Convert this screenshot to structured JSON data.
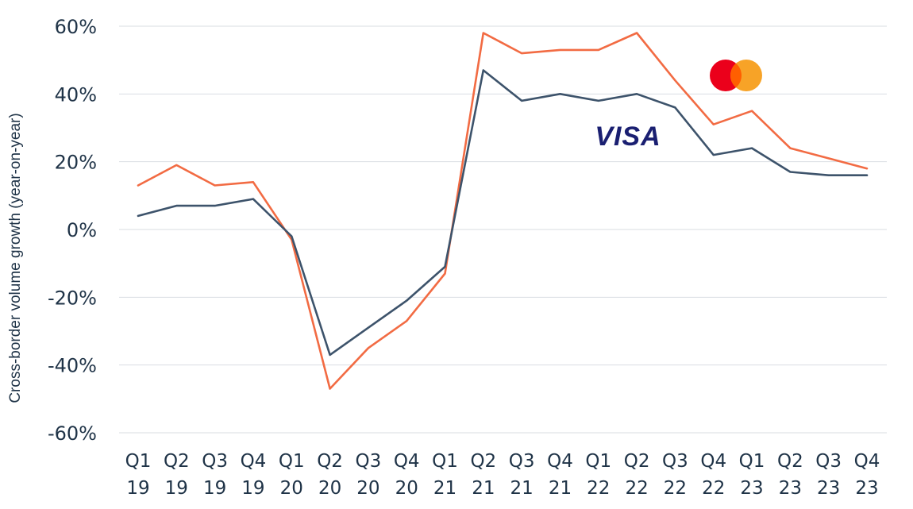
{
  "chart_data": {
    "type": "line",
    "xlabel": "",
    "ylabel": "Cross-border volume growth (year-on-year)",
    "categories": [
      [
        "Q1",
        "19"
      ],
      [
        "Q2",
        "19"
      ],
      [
        "Q3",
        "19"
      ],
      [
        "Q4",
        "19"
      ],
      [
        "Q1",
        "20"
      ],
      [
        "Q2",
        "20"
      ],
      [
        "Q3",
        "20"
      ],
      [
        "Q4",
        "20"
      ],
      [
        "Q1",
        "21"
      ],
      [
        "Q2",
        "21"
      ],
      [
        "Q3",
        "21"
      ],
      [
        "Q4",
        "21"
      ],
      [
        "Q1",
        "22"
      ],
      [
        "Q2",
        "22"
      ],
      [
        "Q3",
        "22"
      ],
      [
        "Q4",
        "22"
      ],
      [
        "Q1",
        "23"
      ],
      [
        "Q2",
        "23"
      ],
      [
        "Q3",
        "23"
      ],
      [
        "Q4",
        "23"
      ]
    ],
    "ylim": [
      -60,
      60
    ],
    "yticks": [
      60,
      40,
      20,
      0,
      -20,
      -40,
      -60
    ],
    "ytick_labels": [
      "60%",
      "40%",
      "20%",
      "0%",
      "-20%",
      "-40%",
      "-60%"
    ],
    "grid": true,
    "series": [
      {
        "key": "mastercard",
        "color": "#f26b43",
        "values": [
          13,
          19,
          13,
          14,
          -3,
          -47,
          -35,
          -27,
          -13,
          58,
          52,
          53,
          53,
          58,
          44,
          31,
          35,
          24,
          21,
          18
        ]
      },
      {
        "key": "visa",
        "color": "#3d536b",
        "values": [
          4,
          7,
          7,
          9,
          -2,
          -37,
          -29,
          -21,
          -11,
          47,
          38,
          40,
          38,
          40,
          36,
          22,
          24,
          17,
          16,
          16
        ]
      }
    ],
    "legend_logos": {
      "mastercard": {
        "colors": [
          "#eb001b",
          "#f79e1b",
          "#ff5f00"
        ],
        "icon": "mastercard-logo"
      },
      "visa": {
        "text": "VISA",
        "color": "#1a1f71",
        "icon": "visa-logo"
      }
    }
  }
}
